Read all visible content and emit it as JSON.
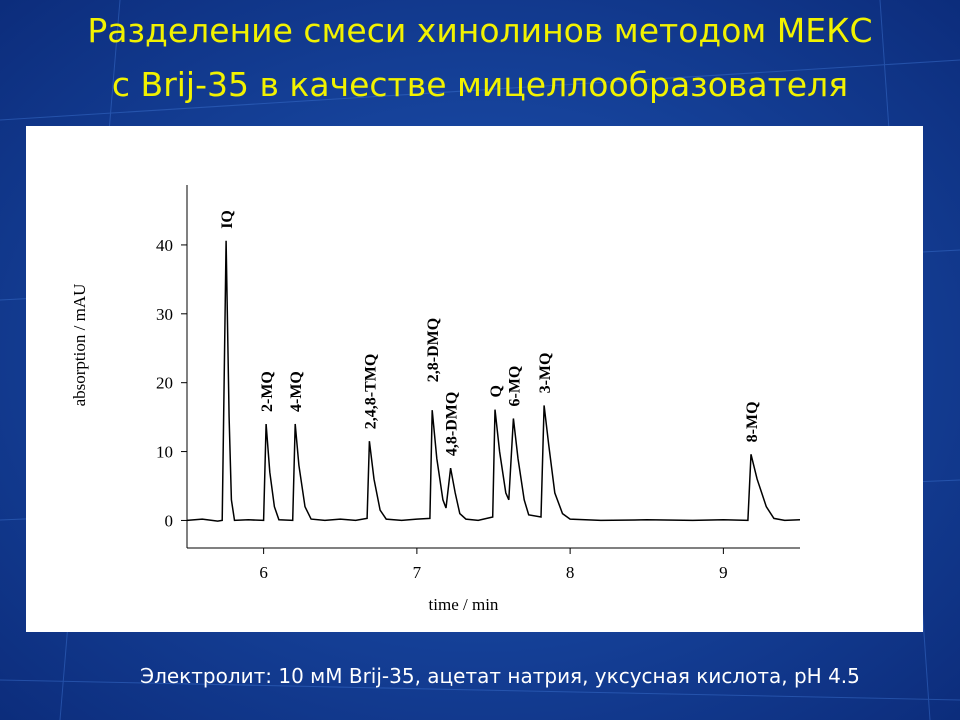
{
  "slide": {
    "title": [
      "Разделение смеси хинолинов методом МЕКС",
      "с Brij-35 в качестве мицеллообразователя"
    ],
    "footer": "Электролит: 10 мМ Brij-35, ацетат натрия, уксусная кислота, pH 4.5"
  },
  "chart_data": {
    "type": "line",
    "x_label": "time / min",
    "y_label": "absorption / mAU",
    "xlim": [
      5.5,
      9.5
    ],
    "ylim": [
      -4,
      48.7
    ],
    "xticks": [
      6,
      7,
      8,
      9
    ],
    "yticks": [
      0,
      10,
      20,
      30,
      40
    ],
    "color": "#000000",
    "x": [
      5.5,
      5.6,
      5.7,
      5.73,
      5.755,
      5.775,
      5.79,
      5.81,
      5.9,
      6.0,
      6.016,
      6.04,
      6.07,
      6.1,
      6.19,
      6.206,
      6.23,
      6.27,
      6.31,
      6.4,
      6.5,
      6.6,
      6.675,
      6.69,
      6.72,
      6.76,
      6.8,
      6.9,
      7.0,
      7.085,
      7.1,
      7.13,
      7.17,
      7.19,
      7.22,
      7.25,
      7.28,
      7.32,
      7.4,
      7.495,
      7.51,
      7.54,
      7.58,
      7.6,
      7.63,
      7.66,
      7.7,
      7.73,
      7.81,
      7.83,
      7.86,
      7.9,
      7.95,
      8.0,
      8.2,
      8.5,
      8.8,
      9.0,
      9.16,
      9.18,
      9.22,
      9.28,
      9.33,
      9.4,
      9.5
    ],
    "values": [
      0,
      0.2,
      -0.1,
      0,
      40.6,
      15,
      3,
      0,
      0.1,
      0,
      14,
      7,
      2,
      0.1,
      0,
      14,
      8,
      2,
      0.2,
      0,
      0.2,
      0,
      0.3,
      11.5,
      6,
      1.5,
      0.2,
      0,
      0.2,
      0.3,
      16,
      9,
      3,
      1.8,
      7.6,
      4,
      1,
      0.2,
      0,
      0.5,
      16.1,
      10,
      4,
      3,
      14.8,
      9,
      3,
      0.8,
      0.5,
      16.7,
      11,
      4,
      1,
      0.2,
      0,
      0.1,
      0,
      0.1,
      0,
      9.6,
      6,
      2,
      0.3,
      0,
      0.1
    ],
    "annotations": [
      {
        "text": "IQ",
        "x": 5.755
      },
      {
        "text": "2-MQ",
        "x": 6.016
      },
      {
        "text": "4-MQ",
        "x": 6.206
      },
      {
        "text": "2,4,8-TMQ",
        "x": 6.69
      },
      {
        "text": "2,8-DMQ",
        "x": 7.1
      },
      {
        "text": "4,8-DMQ",
        "x": 7.22
      },
      {
        "text": "Q",
        "x": 7.51
      },
      {
        "text": "6-MQ",
        "x": 7.63
      },
      {
        "text": "3-MQ",
        "x": 7.83
      },
      {
        "text": "8-MQ",
        "x": 9.18
      }
    ]
  }
}
